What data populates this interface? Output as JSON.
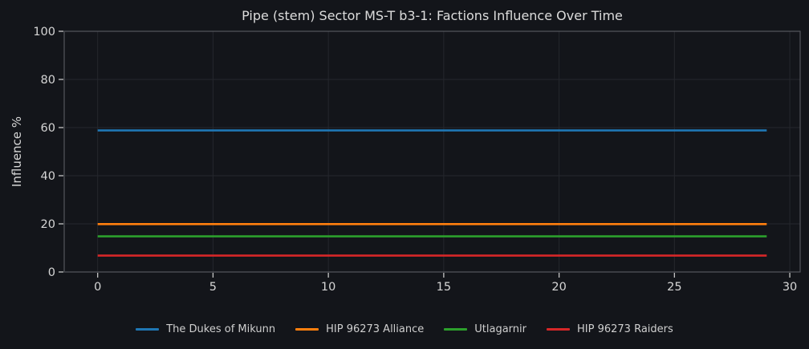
{
  "chart_data": {
    "type": "line",
    "title": "Pipe (stem) Sector MS-T b3-1: Factions Influence Over Time",
    "xlabel": "",
    "ylabel": "Influence %",
    "xlim": [
      -1.45,
      30.45
    ],
    "ylim": [
      0,
      100
    ],
    "x_ticks": [
      0,
      5,
      10,
      15,
      20,
      25,
      30
    ],
    "y_ticks": [
      0,
      20,
      40,
      60,
      80,
      100
    ],
    "grid": true,
    "legend_position": "bottom-center",
    "series": [
      {
        "name": "The Dukes of Mikunn",
        "color": "#1f77b4",
        "constant": true,
        "value": 58.8,
        "x_span": [
          0,
          29
        ]
      },
      {
        "name": "HIP 96273 Alliance",
        "color": "#ff7f0e",
        "constant": true,
        "value": 19.9,
        "x_span": [
          0,
          29
        ]
      },
      {
        "name": "Utlagarnir",
        "color": "#2ca02c",
        "constant": true,
        "value": 14.8,
        "x_span": [
          0,
          29
        ]
      },
      {
        "name": "HIP 96273 Raiders",
        "color": "#d62728",
        "constant": true,
        "value": 6.8,
        "x_span": [
          0,
          29
        ]
      }
    ]
  },
  "theme": {
    "background": "#13151a",
    "grid_color": "#25272d",
    "spine_color": "#55585e",
    "tick_color": "#c6c6c6",
    "tick_label_color": "#d6d6d6",
    "title_color": "#dcdcdc",
    "legend_text_color": "#cfcfcf"
  }
}
